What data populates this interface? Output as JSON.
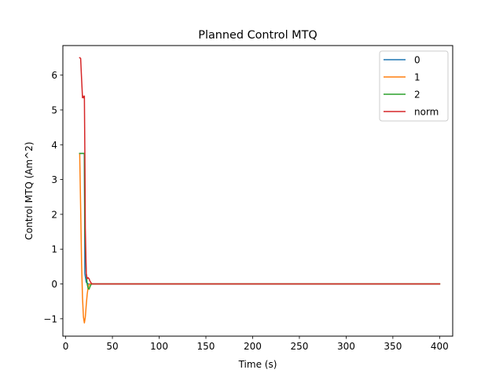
{
  "chart_data": {
    "type": "line",
    "title": "Planned Control MTQ",
    "xlabel": "Time (s)",
    "ylabel": "Control MTQ (Am^2)",
    "xlim": [
      -3,
      414
    ],
    "ylim": [
      -1.5,
      6.85
    ],
    "xticks": [
      0,
      50,
      100,
      150,
      200,
      250,
      300,
      350,
      400
    ],
    "yticks": [
      -1,
      0,
      1,
      2,
      3,
      4,
      5,
      6
    ],
    "ytick_labels": [
      "−1",
      "0",
      "1",
      "2",
      "3",
      "4",
      "5",
      "6"
    ],
    "grid": false,
    "legend_position": "top-right",
    "series": [
      {
        "name": "0",
        "color": "#1f77b4",
        "x": [
          15,
          20,
          20.5,
          22,
          24,
          26,
          28,
          30,
          35,
          50,
          100,
          200,
          300,
          400
        ],
        "y": [
          3.75,
          3.75,
          0.3,
          0.05,
          0.0,
          0.0,
          0.0,
          0.0,
          0.0,
          0.0,
          0.0,
          0.0,
          0.0,
          0.0
        ]
      },
      {
        "name": "1",
        "color": "#ff7f0e",
        "x": [
          15,
          16,
          17,
          18,
          19,
          20,
          21,
          22,
          23,
          24,
          25,
          26,
          28,
          30,
          35,
          50,
          100,
          200,
          300,
          400
        ],
        "y": [
          3.75,
          2.2,
          0.6,
          -0.4,
          -0.95,
          -1.12,
          -0.95,
          -0.6,
          -0.3,
          -0.1,
          -0.02,
          0.0,
          0.0,
          0.0,
          0.0,
          0.0,
          0.0,
          0.0,
          0.0,
          0.0
        ]
      },
      {
        "name": "2",
        "color": "#2ca02c",
        "x": [
          15,
          20,
          20.5,
          22,
          23,
          24,
          25,
          26,
          27,
          28,
          30,
          35,
          50,
          100,
          200,
          300,
          400
        ],
        "y": [
          3.75,
          3.75,
          1.5,
          0.3,
          0.0,
          -0.12,
          -0.15,
          -0.08,
          -0.02,
          0.0,
          0.0,
          0.0,
          0.0,
          0.0,
          0.0,
          0.0,
          0.0
        ]
      },
      {
        "name": "norm",
        "color": "#d62728",
        "x": [
          15,
          16,
          17,
          18,
          18.5,
          19,
          20,
          20.5,
          21,
          22,
          23,
          24,
          25,
          26,
          28,
          30,
          35,
          50,
          100,
          200,
          300,
          400
        ],
        "y": [
          6.5,
          6.48,
          5.9,
          5.35,
          5.4,
          5.35,
          5.4,
          3.8,
          1.6,
          0.3,
          0.15,
          0.18,
          0.15,
          0.08,
          0.0,
          0.0,
          0.0,
          0.0,
          0.0,
          0.0,
          0.0,
          0.0
        ]
      }
    ]
  }
}
